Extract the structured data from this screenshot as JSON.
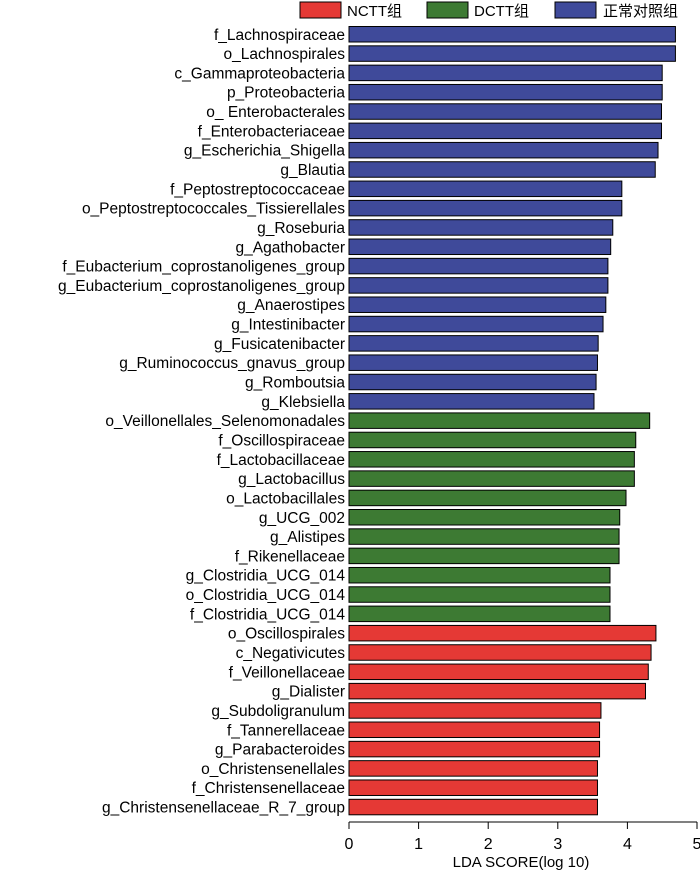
{
  "chart_data": {
    "type": "bar",
    "orientation": "horizontal",
    "xlabel": "LDA SCORE(log 10)",
    "xlim": [
      0,
      5
    ],
    "xticks": [
      "0",
      "1",
      "2",
      "3",
      "4",
      "5"
    ],
    "grid": false,
    "legend_position": "top-right",
    "legend": [
      {
        "name": "NCTT组",
        "color": "#e53935"
      },
      {
        "name": "DCTT组",
        "color": "#3d7a33"
      },
      {
        "name": "正常对照组",
        "color": "#3f4a9a"
      }
    ],
    "bars": [
      {
        "label": "f_Lachnospiraceae",
        "value": 4.69,
        "group": "正常对照组"
      },
      {
        "label": "o_Lachnospirales",
        "value": 4.69,
        "group": "正常对照组"
      },
      {
        "label": "c_Gammaproteobacteria",
        "value": 4.5,
        "group": "正常对照组"
      },
      {
        "label": "p_Proteobacteria",
        "value": 4.5,
        "group": "正常对照组"
      },
      {
        "label": "o_ Enterobacterales",
        "value": 4.49,
        "group": "正常对照组"
      },
      {
        "label": "f_Enterobacteriaceae",
        "value": 4.49,
        "group": "正常对照组"
      },
      {
        "label": "g_Escherichia_Shigella",
        "value": 4.44,
        "group": "正常对照组"
      },
      {
        "label": "g_Blautia",
        "value": 4.4,
        "group": "正常对照组"
      },
      {
        "label": "f_Peptostreptococcaceae",
        "value": 3.92,
        "group": "正常对照组"
      },
      {
        "label": "o_Peptostreptococcales_Tissierellales",
        "value": 3.92,
        "group": "正常对照组"
      },
      {
        "label": "g_Roseburia",
        "value": 3.79,
        "group": "正常对照组"
      },
      {
        "label": "g_Agathobacter",
        "value": 3.76,
        "group": "正常对照组"
      },
      {
        "label": "f_Eubacterium_coprostanoligenes_group",
        "value": 3.72,
        "group": "正常对照组"
      },
      {
        "label": "g_Eubacterium_coprostanoligenes_group",
        "value": 3.72,
        "group": "正常对照组"
      },
      {
        "label": "g_Anaerostipes",
        "value": 3.69,
        "group": "正常对照组"
      },
      {
        "label": "g_Intestinibacter",
        "value": 3.65,
        "group": "正常对照组"
      },
      {
        "label": "g_Fusicatenibacter",
        "value": 3.58,
        "group": "正常对照组"
      },
      {
        "label": "g_Ruminococcus_gnavus_group",
        "value": 3.57,
        "group": "正常对照组"
      },
      {
        "label": "g_Romboutsia",
        "value": 3.55,
        "group": "正常对照组"
      },
      {
        "label": "g_Klebsiella",
        "value": 3.52,
        "group": "正常对照组"
      },
      {
        "label": "o_Veillonellales_Selenomonadales",
        "value": 4.32,
        "group": "DCTT组"
      },
      {
        "label": "f_Oscillospiraceae",
        "value": 4.12,
        "group": "DCTT组"
      },
      {
        "label": "f_Lactobacillaceae",
        "value": 4.1,
        "group": "DCTT组"
      },
      {
        "label": "g_Lactobacillus",
        "value": 4.1,
        "group": "DCTT组"
      },
      {
        "label": "o_Lactobacillales",
        "value": 3.98,
        "group": "DCTT组"
      },
      {
        "label": "g_UCG_002",
        "value": 3.89,
        "group": "DCTT组"
      },
      {
        "label": "g_Alistipes",
        "value": 3.88,
        "group": "DCTT组"
      },
      {
        "label": "f_Rikenellaceae",
        "value": 3.88,
        "group": "DCTT组"
      },
      {
        "label": "g_Clostridia_UCG_014",
        "value": 3.75,
        "group": "DCTT组"
      },
      {
        "label": "o_Clostridia_UCG_014",
        "value": 3.75,
        "group": "DCTT组"
      },
      {
        "label": "f_Clostridia_UCG_014",
        "value": 3.75,
        "group": "DCTT组"
      },
      {
        "label": "o_Oscillospirales",
        "value": 4.41,
        "group": "NCTT组"
      },
      {
        "label": "c_Negativicutes",
        "value": 4.34,
        "group": "NCTT组"
      },
      {
        "label": "f_Veillonellaceae",
        "value": 4.3,
        "group": "NCTT组"
      },
      {
        "label": "g_Dialister",
        "value": 4.26,
        "group": "NCTT组"
      },
      {
        "label": "g_Subdoligranulum",
        "value": 3.62,
        "group": "NCTT组"
      },
      {
        "label": "f_Tannerellaceae",
        "value": 3.6,
        "group": "NCTT组"
      },
      {
        "label": "g_Parabacteroides",
        "value": 3.6,
        "group": "NCTT组"
      },
      {
        "label": "o_Christensenellales",
        "value": 3.57,
        "group": "NCTT组"
      },
      {
        "label": "f_Christensenellaceae",
        "value": 3.57,
        "group": "NCTT组"
      },
      {
        "label": "g_Christensenellaceae_R_7_group",
        "value": 3.57,
        "group": "NCTT组"
      }
    ]
  }
}
